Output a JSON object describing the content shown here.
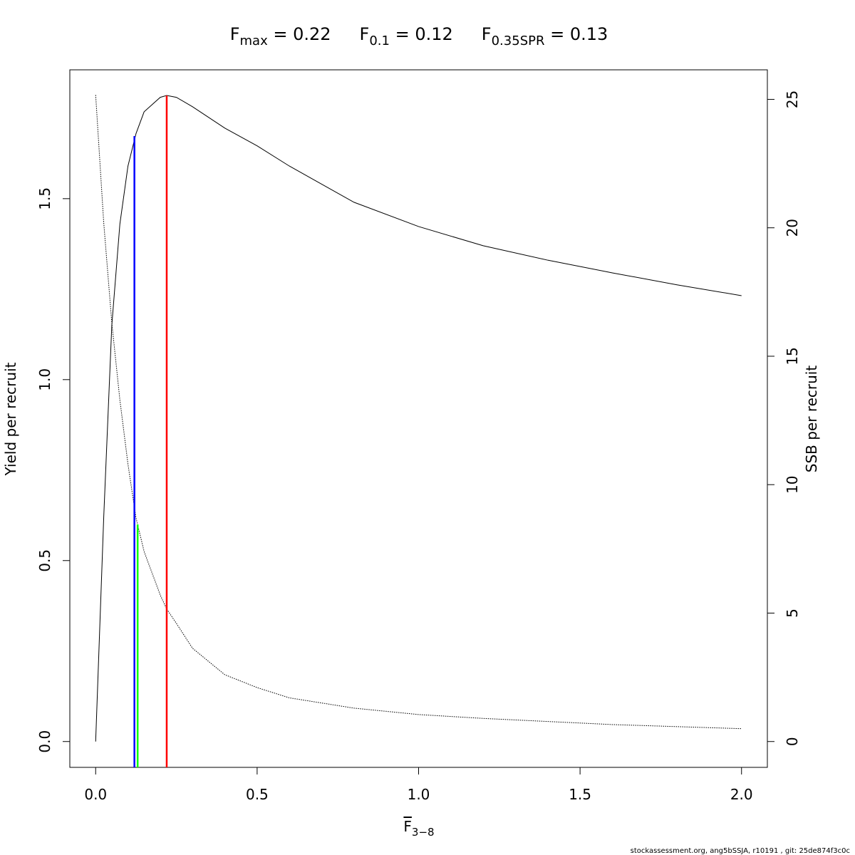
{
  "chart_data": {
    "type": "line",
    "title_parts": [
      {
        "main": "F",
        "sub": "max",
        "rest": " = 0.22"
      },
      {
        "main": "F",
        "sub": "0.1",
        "rest": " = 0.12"
      },
      {
        "main": "F",
        "sub": "0.35SPR",
        "rest": " = 0.13"
      }
    ],
    "xlabel": {
      "main": "F",
      "sub": "3−8"
    },
    "ylabel": "Yield per recruit",
    "y2label": "SSB per recruit",
    "footer": "stockassessment.org, ang5bSSJA, r10191 , git: 25de874f3c0c",
    "x": [
      0,
      0.025,
      0.05,
      0.075,
      0.1,
      0.125,
      0.15,
      0.2,
      0.22,
      0.25,
      0.3,
      0.4,
      0.5,
      0.6,
      0.8,
      1.0,
      1.2,
      1.4,
      1.6,
      1.8,
      2.0
    ],
    "series": [
      {
        "name": "Yield per recruit",
        "color": "#000000",
        "dash": "solid",
        "values": [
          0,
          0.62,
          1.15,
          1.43,
          1.59,
          1.68,
          1.74,
          1.78,
          1.785,
          1.78,
          1.754,
          1.695,
          1.646,
          1.59,
          1.49,
          1.423,
          1.37,
          1.33,
          1.295,
          1.262,
          1.232
        ]
      },
      {
        "name": "SSB per recruit",
        "color": "#000000",
        "dash": "dotted",
        "axis": "y2",
        "values": [
          25.17,
          20.2,
          16.3,
          13.3,
          10.8,
          8.7,
          7.4,
          5.7,
          5.16,
          4.6,
          3.63,
          2.6,
          2.1,
          1.7,
          1.3,
          1.05,
          0.9,
          0.78,
          0.66,
          0.58,
          0.5
        ]
      }
    ],
    "ref_lines": [
      {
        "x": 0.12,
        "y": 1.673,
        "color": "#0000ff"
      },
      {
        "x": 0.13,
        "y": 0.6,
        "color": "#00ff00"
      },
      {
        "x": 0.22,
        "y": 1.785,
        "color": "#ff0000"
      }
    ],
    "xlim": [
      -0.08,
      2.08
    ],
    "ylim": [
      -0.0714,
      1.856
    ],
    "y2lim": [
      -1.006,
      26.15
    ],
    "xticks": [
      {
        "value": 0,
        "label": "0.0"
      },
      {
        "value": 0.5,
        "label": "0.5"
      },
      {
        "value": 1,
        "label": "1.0"
      },
      {
        "value": 1.5,
        "label": "1.5"
      },
      {
        "value": 2,
        "label": "2.0"
      }
    ],
    "yticks": [
      {
        "value": 0,
        "label": "0.0"
      },
      {
        "value": 0.5,
        "label": "0.5"
      },
      {
        "value": 1,
        "label": "1.0"
      },
      {
        "value": 1.5,
        "label": "1.5"
      }
    ],
    "y2ticks": [
      0,
      5,
      10,
      15,
      20,
      25
    ]
  }
}
